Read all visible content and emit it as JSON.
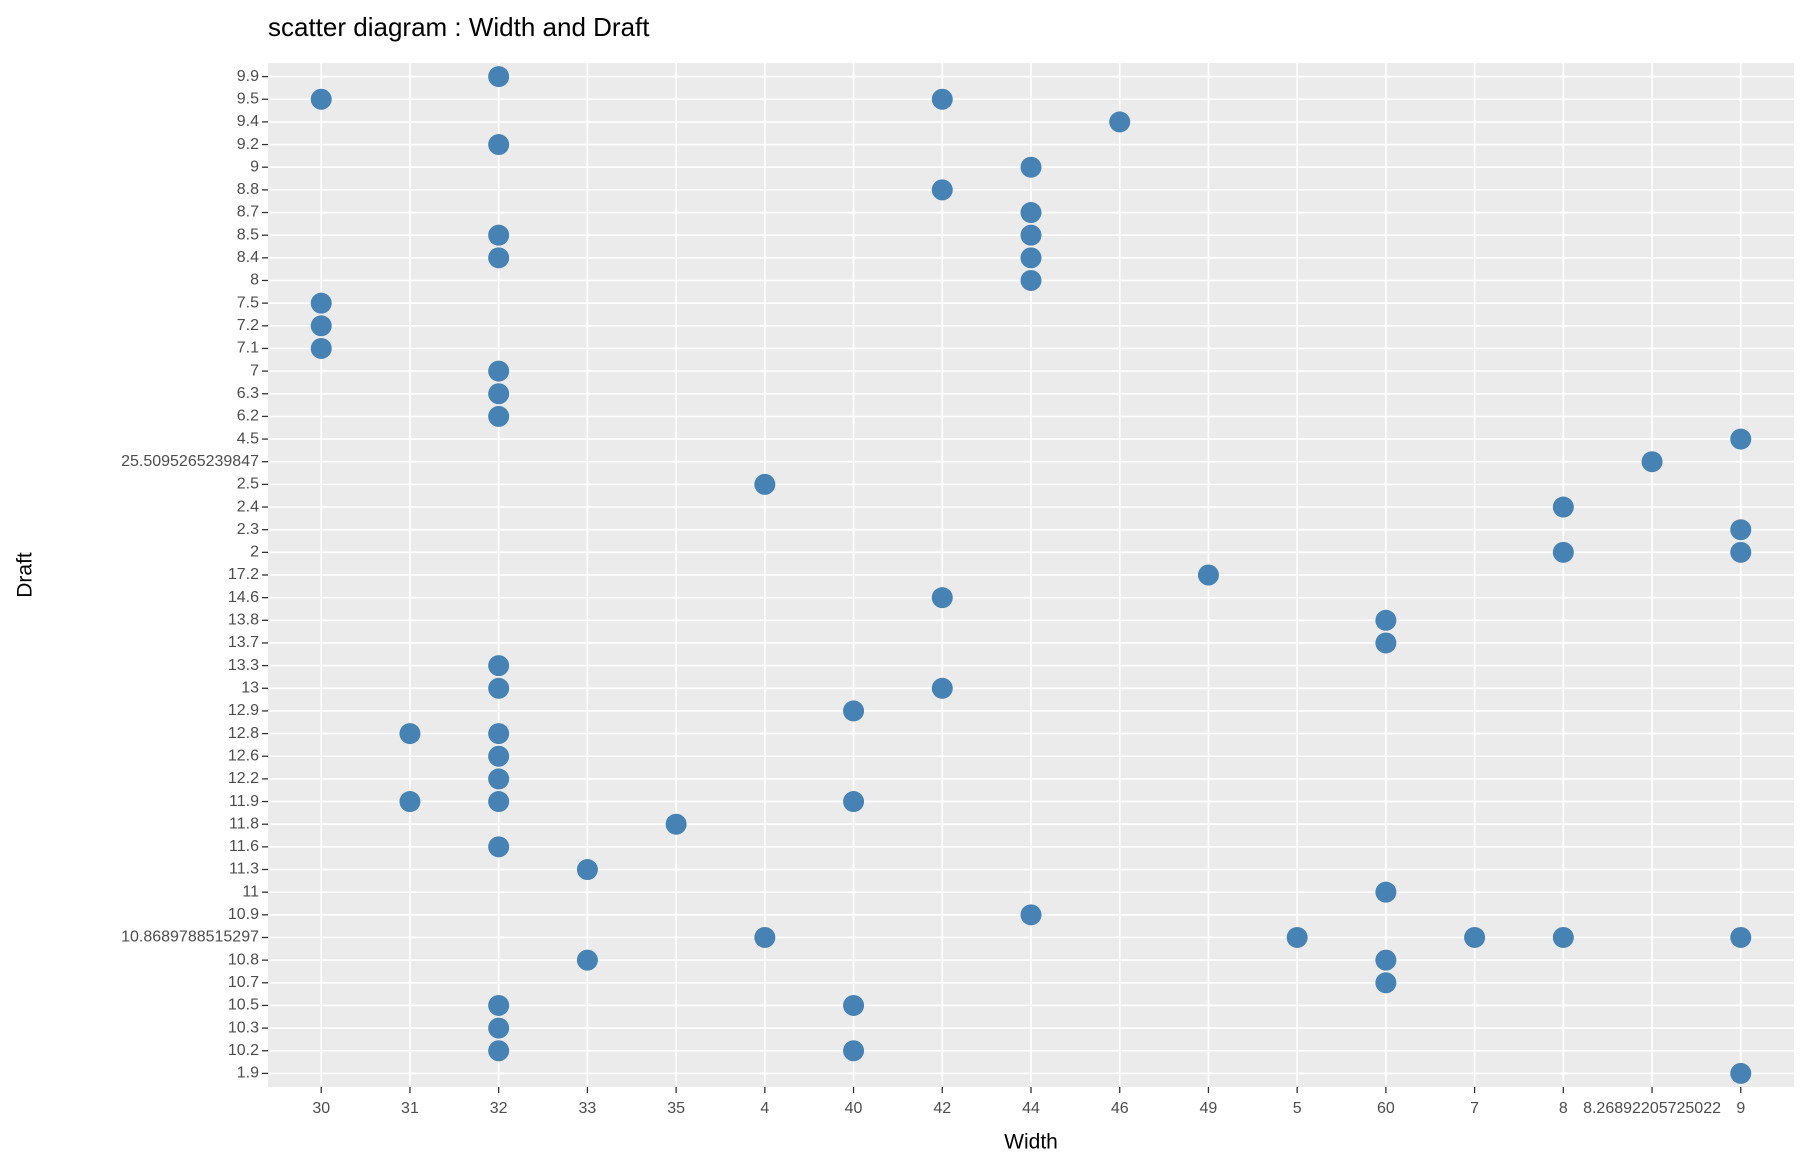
{
  "chart_data": {
    "type": "scatter",
    "title": "scatter diagram : Width and Draft",
    "x_label": "Width",
    "y_label": "Draft",
    "xcategories": [
      "30",
      "31",
      "32",
      "33",
      "35",
      "4",
      "40",
      "42",
      "44",
      "46",
      "49",
      "5",
      "60",
      "7",
      "8",
      "8.26892205725022",
      "9"
    ],
    "ycategories": [
      "1.9",
      "10.2",
      "10.3",
      "10.5",
      "10.7",
      "10.8",
      "10.8689788515297",
      "10.9",
      "11",
      "11.3",
      "11.6",
      "11.8",
      "11.9",
      "12.2",
      "12.6",
      "12.8",
      "12.9",
      "13",
      "13.3",
      "13.7",
      "13.8",
      "14.6",
      "17.2",
      "2",
      "2.3",
      "2.4",
      "2.5",
      "25.5095265239847",
      "4.5",
      "6.2",
      "6.3",
      "7",
      "7.1",
      "7.2",
      "7.5",
      "8",
      "8.4",
      "8.5",
      "8.7",
      "8.8",
      "9",
      "9.2",
      "9.4",
      "9.5",
      "9.9"
    ],
    "grid": true,
    "series": [
      {
        "color": "#4682b4",
        "x": [
          "32",
          "30",
          "42",
          "46",
          "32",
          "44",
          "42",
          "44",
          "32",
          "44",
          "32",
          "44",
          "44",
          "30",
          "30",
          "30",
          "32",
          "32",
          "32",
          "9",
          "8.26892205725022",
          "4",
          "8",
          "9",
          "8",
          "9",
          "49",
          "42",
          "60",
          "60",
          "32",
          "32",
          "42",
          "40",
          "31",
          "32",
          "32",
          "32",
          "31",
          "32",
          "40",
          "35",
          "32",
          "33",
          "60",
          "44",
          "4",
          "5",
          "7",
          "8",
          "9",
          "33",
          "60",
          "60",
          "32",
          "40",
          "32",
          "32",
          "40",
          "9"
        ],
        "y": [
          "9.9",
          "9.5",
          "9.5",
          "9.4",
          "9.2",
          "9",
          "8.8",
          "8.7",
          "8.5",
          "8.5",
          "8.4",
          "8.4",
          "8",
          "7.5",
          "7.2",
          "7.1",
          "7",
          "6.3",
          "6.2",
          "4.5",
          "25.5095265239847",
          "2.5",
          "2.4",
          "2.3",
          "2",
          "2",
          "17.2",
          "14.6",
          "13.8",
          "13.7",
          "13.3",
          "13",
          "13",
          "12.9",
          "12.8",
          "12.8",
          "12.6",
          "12.2",
          "11.9",
          "11.9",
          "11.9",
          "11.8",
          "11.6",
          "11.3",
          "11",
          "10.9",
          "10.8689788515297",
          "10.8689788515297",
          "10.8689788515297",
          "10.8689788515297",
          "10.8689788515297",
          "10.8",
          "10.8",
          "10.7",
          "10.5",
          "10.5",
          "10.3",
          "10.2",
          "10.2",
          "1.9"
        ]
      }
    ]
  }
}
